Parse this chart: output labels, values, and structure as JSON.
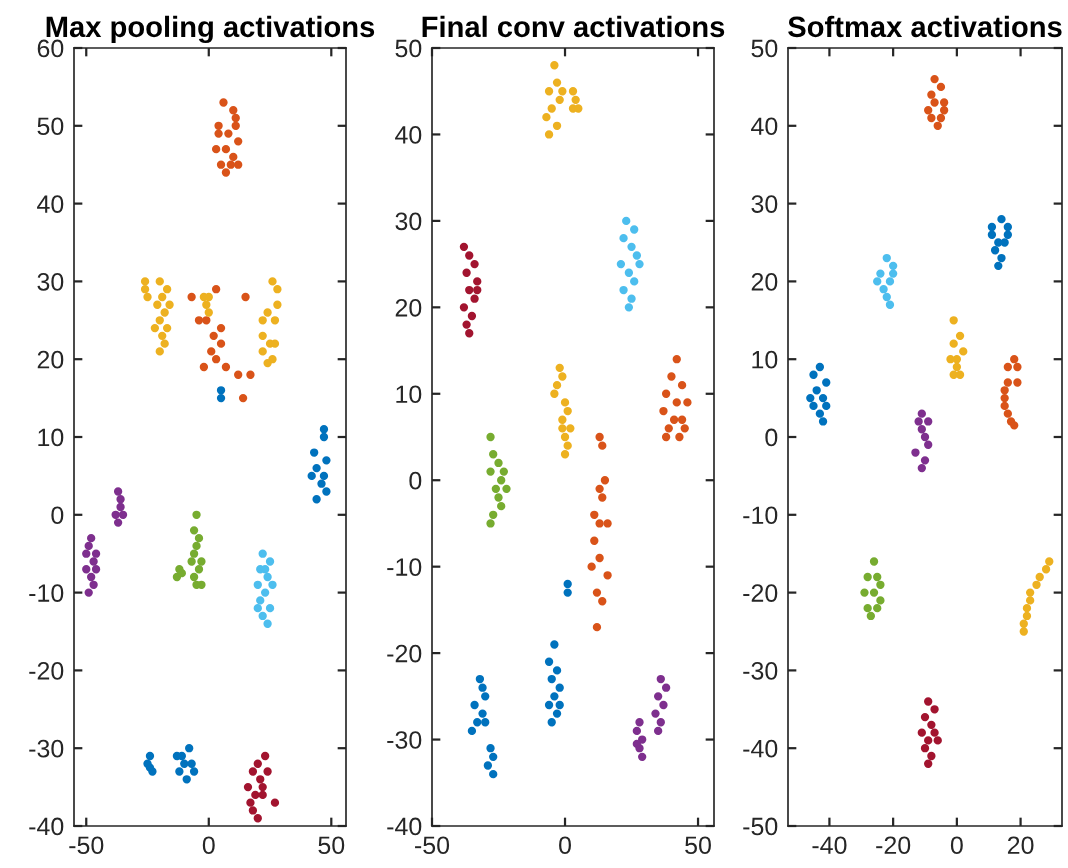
{
  "chart_data": [
    {
      "type": "scatter",
      "title": "Max pooling activations",
      "marker": "circle",
      "xlim": [
        -55,
        56
      ],
      "ylim": [
        -40,
        60
      ],
      "xticks": [
        -50,
        0,
        50
      ],
      "yticks": [
        -40,
        -30,
        -20,
        -10,
        0,
        10,
        20,
        30,
        40,
        50,
        60
      ],
      "series": [
        {
          "color": "#d95319",
          "x": [
            6,
            10,
            11,
            4,
            8,
            12,
            3,
            7,
            10,
            5,
            9,
            12,
            7,
            4,
            11,
            -7,
            -4,
            3,
            -1,
            2,
            5,
            3,
            7,
            5,
            -2,
            15,
            17,
            12,
            14,
            1
          ],
          "values": [
            53,
            52,
            51,
            49,
            49,
            48,
            47,
            47,
            46,
            45,
            45,
            45,
            44,
            50,
            50,
            28,
            25,
            29,
            25,
            23,
            22,
            20,
            19,
            24,
            19,
            28,
            18,
            18,
            15,
            21
          ]
        },
        {
          "color": "#edb120",
          "x": [
            -26,
            -25,
            -26,
            -20,
            -19,
            -18,
            -20,
            -17,
            -19,
            -18,
            -21,
            -16,
            -20,
            -17,
            -22,
            -2,
            0,
            -1,
            0,
            26,
            28,
            28,
            27,
            22,
            24,
            22,
            25,
            24,
            27,
            26,
            22
          ],
          "values": [
            30,
            28,
            29,
            30,
            28,
            26,
            25,
            24,
            23,
            22,
            27,
            27,
            21,
            29,
            24,
            28,
            28,
            27,
            26,
            30,
            29,
            27,
            25,
            25,
            26,
            23,
            22,
            19.5,
            22,
            20,
            21
          ]
        },
        {
          "color": "#0072bd",
          "x": [
            5,
            5,
            47,
            47,
            43,
            48,
            44,
            42,
            46,
            48,
            44,
            47,
            -24,
            -25,
            -23,
            -24,
            -13,
            -8,
            -10,
            -12,
            -7,
            -9,
            -11,
            -6
          ],
          "values": [
            16,
            15,
            11,
            10,
            8,
            7,
            6,
            5,
            4,
            3,
            2,
            5,
            -31,
            -32,
            -33,
            -32.5,
            -31,
            -30,
            -32,
            -33,
            -32,
            -34,
            -31,
            -33
          ]
        },
        {
          "color": "#7e2f8e",
          "x": [
            -37,
            -36,
            -38,
            -37,
            -35,
            -36,
            -48,
            -49,
            -47,
            -50,
            -46,
            -48,
            -47,
            -49,
            -50,
            -46
          ],
          "values": [
            3,
            1,
            0,
            -1,
            0,
            2,
            -3,
            -4,
            -6,
            -7,
            -7,
            -8,
            -9,
            -10,
            -5,
            -5
          ]
        },
        {
          "color": "#77ac30",
          "x": [
            -5,
            -6,
            -4,
            -5,
            -6,
            -3,
            -7,
            -4,
            -6,
            -3,
            -5,
            -12,
            -13,
            -11
          ],
          "values": [
            0,
            -2,
            -3,
            -4,
            -5,
            -6,
            -6,
            -7,
            -8,
            -9,
            -9,
            -7,
            -8,
            -7.5
          ]
        },
        {
          "color": "#4dbeee",
          "x": [
            22,
            25,
            21,
            24,
            20,
            23,
            26,
            21,
            25,
            22,
            24,
            20,
            23
          ],
          "values": [
            -5,
            -6,
            -7,
            -8,
            -9,
            -10,
            -9,
            -11,
            -12,
            -13,
            -14,
            -12,
            -7
          ]
        },
        {
          "color": "#a2142f",
          "x": [
            23,
            20,
            24,
            18,
            21,
            16,
            19,
            22,
            17,
            27,
            18,
            20,
            22
          ],
          "values": [
            -31,
            -32,
            -33,
            -33,
            -34,
            -35,
            -36,
            -36,
            -37,
            -37,
            -38,
            -39,
            -35
          ]
        }
      ]
    },
    {
      "type": "scatter",
      "title": "Final conv activations",
      "marker": "circle",
      "xlim": [
        -50,
        56
      ],
      "ylim": [
        -40,
        50
      ],
      "xticks": [
        -50,
        0,
        50
      ],
      "yticks": [
        -40,
        -30,
        -20,
        -10,
        0,
        10,
        20,
        30,
        40,
        50
      ],
      "series": [
        {
          "color": "#edb120",
          "x": [
            -4,
            -3,
            -6,
            -2,
            -5,
            -7,
            -3,
            -6,
            -1,
            3,
            4,
            3,
            5,
            -2,
            -1,
            -3,
            -4,
            0,
            1,
            -1,
            2,
            0,
            1,
            0,
            -1
          ],
          "values": [
            48,
            46,
            45,
            44,
            43,
            42,
            41,
            40,
            45,
            45,
            44,
            43,
            43,
            13,
            12,
            11,
            10,
            9,
            8,
            7,
            6,
            5,
            4,
            3,
            6
          ]
        },
        {
          "color": "#4dbeee",
          "x": [
            23,
            26,
            22,
            25,
            27,
            21,
            24,
            26,
            22,
            25,
            24,
            28
          ],
          "values": [
            30,
            29,
            28,
            27,
            26,
            25,
            24,
            23,
            22,
            21,
            20,
            25
          ]
        },
        {
          "color": "#a2142f",
          "x": [
            -38,
            -36,
            -34,
            -37,
            -33,
            -36,
            -34,
            -38,
            -35,
            -37,
            -36,
            -33
          ],
          "values": [
            27,
            26,
            25,
            24,
            23,
            22,
            21,
            20,
            19,
            18,
            17,
            22
          ]
        },
        {
          "color": "#d95319",
          "x": [
            42,
            40,
            44,
            38,
            42,
            46,
            37,
            41,
            44,
            39,
            43,
            38,
            45,
            13,
            14,
            15,
            13,
            14,
            11,
            13,
            16,
            11,
            13,
            10,
            16,
            12,
            14,
            12
          ],
          "values": [
            14,
            12,
            11,
            10,
            9,
            9,
            8,
            7,
            7,
            6,
            5,
            5,
            6,
            5,
            4,
            0,
            -1,
            -2,
            -4,
            -5,
            -5,
            -7,
            -9,
            -10,
            -11,
            -13,
            -14,
            -17
          ]
        },
        {
          "color": "#77ac30",
          "x": [
            -28,
            -27,
            -25,
            -28,
            -24,
            -26,
            -22,
            -25,
            -27,
            -24,
            -28,
            -23
          ],
          "values": [
            5,
            3,
            2,
            1,
            0,
            -1,
            -1,
            -2,
            -4,
            -3,
            -5,
            1
          ]
        },
        {
          "color": "#0072bd",
          "x": [
            1,
            1,
            -4,
            -6,
            -3,
            -5,
            -2,
            -4,
            -6,
            -3,
            -5,
            -2,
            -32,
            -30,
            -34,
            -31,
            -33,
            -35,
            -30,
            -28,
            -27,
            -29,
            -27,
            -31
          ],
          "values": [
            -12,
            -13,
            -19,
            -21,
            -22,
            -23,
            -24,
            -25,
            -26,
            -27,
            -28,
            -26,
            -23,
            -25,
            -26,
            -27,
            -28,
            -29,
            -28,
            -31,
            -32,
            -33,
            -34,
            -24
          ]
        },
        {
          "color": "#7e2f8e",
          "x": [
            36,
            38,
            35,
            37,
            34,
            36,
            35,
            28,
            27,
            29,
            28,
            29,
            27
          ],
          "values": [
            -23,
            -24,
            -25,
            -26,
            -27,
            -28,
            -29,
            -28,
            -29,
            -30,
            -31,
            -32,
            -30.5
          ]
        }
      ]
    },
    {
      "type": "scatter",
      "title": "Softmax activations",
      "marker": "circle",
      "xlim": [
        -53,
        33
      ],
      "ylim": [
        -50,
        50
      ],
      "xticks": [
        -40,
        -20,
        0,
        20
      ],
      "yticks": [
        -50,
        -40,
        -30,
        -20,
        -10,
        0,
        10,
        20,
        30,
        40,
        50
      ],
      "series": [
        {
          "color": "#d95319",
          "x": [
            -7,
            -5,
            -8,
            -4,
            -7,
            -9,
            -5,
            -8,
            -4,
            -6,
            16,
            18,
            19,
            19,
            16,
            15,
            15,
            16,
            17,
            18,
            15
          ],
          "values": [
            46,
            45,
            44,
            43,
            43,
            42,
            41,
            41,
            42,
            40,
            9,
            10,
            9,
            7,
            7,
            6,
            4,
            3,
            2,
            1.5,
            5
          ]
        },
        {
          "color": "#0072bd",
          "x": [
            11,
            14,
            16,
            16,
            15,
            13,
            11,
            12,
            14,
            13,
            -45,
            -43,
            -41,
            -44,
            -42,
            -45,
            -43,
            -41,
            -46,
            -42
          ],
          "values": [
            27,
            28,
            27,
            26,
            25,
            25,
            26,
            24,
            23,
            22,
            8,
            9,
            7,
            6,
            5,
            4,
            3,
            4,
            5,
            2
          ]
        },
        {
          "color": "#4dbeee",
          "x": [
            -22,
            -20,
            -24,
            -21,
            -23,
            -22,
            -21,
            -20,
            -25
          ],
          "values": [
            23,
            22,
            21,
            20,
            19,
            18,
            17,
            21,
            20
          ]
        },
        {
          "color": "#edb120",
          "x": [
            -1,
            1,
            -1,
            2,
            -2,
            0,
            -1,
            1,
            0,
            29,
            28,
            26,
            25,
            23,
            22,
            22,
            21,
            21,
            23
          ],
          "values": [
            15,
            13,
            12,
            11,
            10,
            9,
            8,
            8,
            10,
            -16,
            -17,
            -18,
            -19,
            -20,
            -22,
            -23,
            -24,
            -25,
            -21
          ]
        },
        {
          "color": "#7e2f8e",
          "x": [
            -11,
            -9,
            -11,
            -10,
            -9,
            -10,
            -11,
            -13,
            -12
          ],
          "values": [
            3,
            2,
            1,
            0,
            -1,
            -3,
            -4,
            -2,
            2
          ]
        },
        {
          "color": "#77ac30",
          "x": [
            -26,
            -28,
            -25,
            -29,
            -26,
            -24,
            -28,
            -25,
            -27,
            -24
          ],
          "values": [
            -16,
            -18,
            -18,
            -20,
            -20,
            -21,
            -22,
            -22,
            -23,
            -19
          ]
        },
        {
          "color": "#a2142f",
          "x": [
            -9,
            -7,
            -10,
            -8,
            -11,
            -7,
            -9,
            -8,
            -9,
            -6,
            -10
          ],
          "values": [
            -34,
            -35,
            -36,
            -37,
            -38,
            -38,
            -39,
            -41,
            -42,
            -39,
            -40
          ]
        }
      ]
    }
  ]
}
